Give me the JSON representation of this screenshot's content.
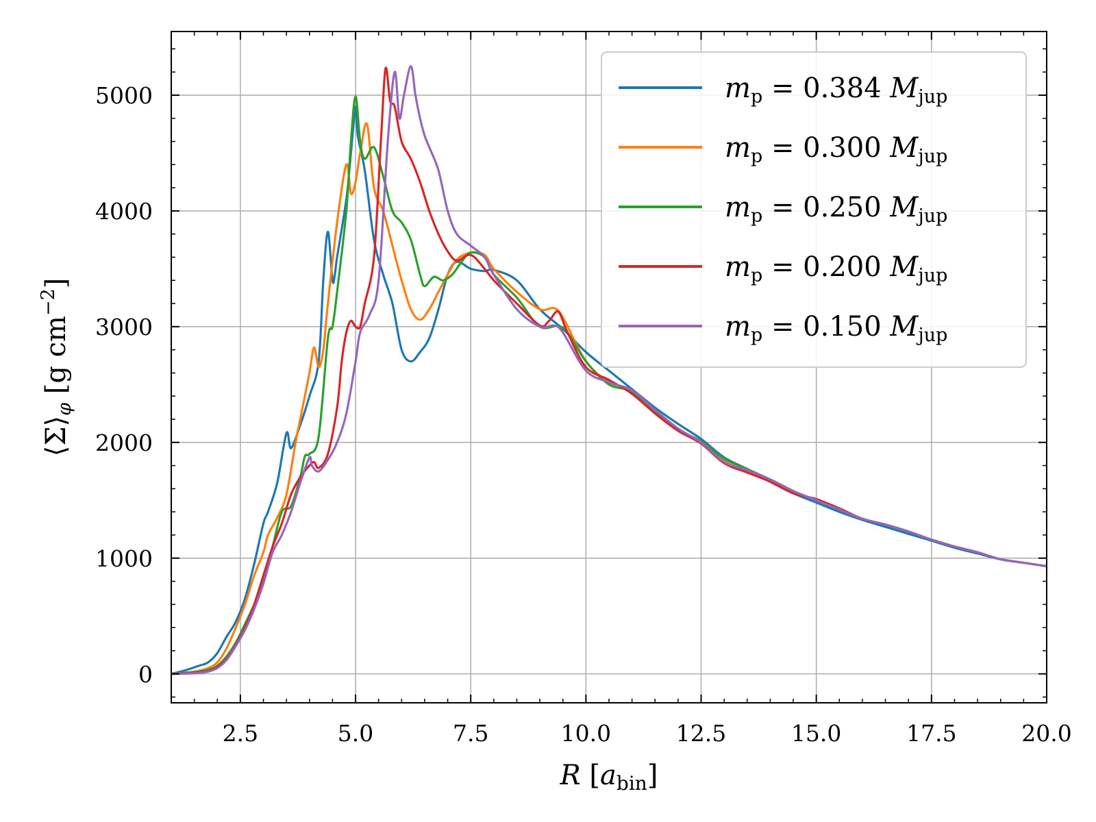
{
  "chart_data": {
    "type": "line",
    "title": "",
    "xlabel": "R [a_bin]",
    "ylabel": "⟨Σ⟩_φ [g cm^-2]",
    "xlim": [
      1.0,
      20.0
    ],
    "ylim": [
      -250,
      5550
    ],
    "xticks": [
      2.5,
      5.0,
      7.5,
      10.0,
      12.5,
      15.0,
      17.5,
      20.0
    ],
    "xtick_labels": [
      "2.5",
      "5.0",
      "7.5",
      "10.0",
      "12.5",
      "15.0",
      "17.5",
      "20.0"
    ],
    "yticks": [
      0,
      1000,
      2000,
      3000,
      4000,
      5000
    ],
    "ytick_labels": [
      "0",
      "1000",
      "2000",
      "3000",
      "4000",
      "5000"
    ],
    "grid": true,
    "legend_position": "top-right",
    "series": [
      {
        "name": "m_p = 0.384 M_jup",
        "color": "#1f77b4",
        "x": [
          1.0,
          1.3,
          1.6,
          1.8,
          2.0,
          2.2,
          2.4,
          2.6,
          2.8,
          3.0,
          3.1,
          3.3,
          3.5,
          3.6,
          3.8,
          4.0,
          4.2,
          4.3,
          4.4,
          4.5,
          4.55,
          4.6,
          4.8,
          4.9,
          5.0,
          5.05,
          5.2,
          5.4,
          5.6,
          5.8,
          6.0,
          6.2,
          6.4,
          6.6,
          6.8,
          7.0,
          7.2,
          7.5,
          7.8,
          8.0,
          8.5,
          9.0,
          9.5,
          10.0,
          10.5,
          11.0,
          11.5,
          12.0,
          12.5,
          13.0,
          13.5,
          14.0,
          14.5,
          15.0,
          15.5,
          16.0,
          16.5,
          17.0,
          17.5,
          18.0,
          18.5,
          19.0,
          19.5,
          20.0
        ],
        "y": [
          0,
          30,
          70,
          100,
          180,
          320,
          450,
          650,
          950,
          1300,
          1400,
          1650,
          2080,
          1950,
          2150,
          2400,
          2700,
          3400,
          3820,
          3400,
          3450,
          3600,
          4100,
          4500,
          4900,
          4650,
          4350,
          3750,
          3450,
          3200,
          2800,
          2700,
          2780,
          2900,
          3150,
          3450,
          3560,
          3500,
          3480,
          3490,
          3400,
          3150,
          2980,
          2780,
          2620,
          2460,
          2300,
          2160,
          2030,
          1870,
          1770,
          1660,
          1560,
          1480,
          1400,
          1330,
          1270,
          1210,
          1150,
          1090,
          1040,
          990,
          960,
          930
        ]
      },
      {
        "name": "m_p = 0.300 M_jup",
        "color": "#ff7f0e",
        "x": [
          1.0,
          1.5,
          1.8,
          2.0,
          2.2,
          2.4,
          2.6,
          2.8,
          3.0,
          3.1,
          3.3,
          3.5,
          3.7,
          3.9,
          4.0,
          4.1,
          4.2,
          4.3,
          4.4,
          4.6,
          4.8,
          4.9,
          5.0,
          5.1,
          5.25,
          5.4,
          5.6,
          5.8,
          6.0,
          6.2,
          6.4,
          6.6,
          6.8,
          7.0,
          7.2,
          7.5,
          7.8,
          8.0,
          8.5,
          9.0,
          9.3,
          9.5,
          10.0,
          10.5,
          11.0,
          11.5,
          12.0,
          12.5,
          13.0,
          13.5,
          14.0,
          14.5,
          15.0,
          15.5,
          16.0,
          16.5,
          17.0,
          17.5,
          18.0,
          18.5,
          19.0,
          19.5,
          20.0
        ],
        "y": [
          0,
          20,
          50,
          100,
          220,
          400,
          600,
          850,
          1050,
          1200,
          1350,
          1550,
          2000,
          2400,
          2600,
          2820,
          2650,
          2800,
          3200,
          3900,
          4400,
          4150,
          4250,
          4500,
          4750,
          4200,
          4000,
          3700,
          3400,
          3150,
          3060,
          3150,
          3300,
          3450,
          3580,
          3640,
          3620,
          3500,
          3300,
          3150,
          3160,
          3080,
          2700,
          2520,
          2440,
          2250,
          2110,
          2000,
          1840,
          1750,
          1680,
          1580,
          1500,
          1420,
          1340,
          1290,
          1230,
          1160,
          1100,
          1050,
          990,
          960,
          930
        ]
      },
      {
        "name": "m_p = 0.250 M_jup",
        "color": "#2ca02c",
        "x": [
          1.0,
          1.5,
          1.8,
          2.0,
          2.2,
          2.4,
          2.6,
          2.8,
          3.0,
          3.2,
          3.4,
          3.6,
          3.8,
          3.9,
          4.0,
          4.2,
          4.4,
          4.5,
          4.6,
          4.8,
          4.9,
          5.0,
          5.1,
          5.2,
          5.4,
          5.6,
          5.8,
          6.0,
          6.2,
          6.4,
          6.5,
          6.7,
          6.9,
          7.1,
          7.3,
          7.5,
          7.8,
          8.0,
          8.5,
          9.0,
          9.5,
          10.0,
          10.5,
          11.0,
          11.5,
          12.0,
          12.5,
          13.0,
          13.5,
          14.0,
          14.5,
          15.0,
          15.5,
          16.0,
          16.5,
          17.0,
          17.5,
          18.0,
          18.5,
          19.0,
          19.5,
          20.0
        ],
        "y": [
          0,
          15,
          35,
          70,
          150,
          270,
          430,
          600,
          800,
          1100,
          1400,
          1450,
          1700,
          1880,
          1900,
          2050,
          2900,
          3000,
          3300,
          4000,
          4600,
          4990,
          4600,
          4450,
          4550,
          4300,
          4000,
          3900,
          3750,
          3450,
          3350,
          3430,
          3400,
          3450,
          3560,
          3640,
          3600,
          3450,
          3250,
          3000,
          2990,
          2700,
          2500,
          2440,
          2260,
          2110,
          2010,
          1860,
          1770,
          1680,
          1580,
          1500,
          1420,
          1340,
          1290,
          1230,
          1160,
          1100,
          1050,
          990,
          960,
          930
        ]
      },
      {
        "name": "m_p = 0.200 M_jup",
        "color": "#d62728",
        "x": [
          1.0,
          1.5,
          1.8,
          2.0,
          2.2,
          2.4,
          2.6,
          2.8,
          3.0,
          3.2,
          3.4,
          3.6,
          3.8,
          4.0,
          4.1,
          4.2,
          4.4,
          4.6,
          4.7,
          4.8,
          4.9,
          5.0,
          5.1,
          5.2,
          5.4,
          5.55,
          5.65,
          5.75,
          5.85,
          6.0,
          6.2,
          6.4,
          6.6,
          6.8,
          7.0,
          7.2,
          7.5,
          7.8,
          8.0,
          8.5,
          9.0,
          9.2,
          9.4,
          9.6,
          10.0,
          10.5,
          11.0,
          11.5,
          12.0,
          12.5,
          13.0,
          13.5,
          14.0,
          14.5,
          15.0,
          15.5,
          16.0,
          16.5,
          17.0,
          17.5,
          18.0,
          18.5,
          19.0,
          19.5,
          20.0
        ],
        "y": [
          0,
          10,
          25,
          60,
          130,
          250,
          400,
          600,
          850,
          1100,
          1300,
          1550,
          1700,
          1800,
          1830,
          1780,
          1900,
          2300,
          2700,
          2950,
          3050,
          3000,
          3000,
          3200,
          3600,
          4600,
          5230,
          4950,
          4900,
          4600,
          4450,
          4250,
          4000,
          3800,
          3650,
          3570,
          3620,
          3500,
          3400,
          3200,
          3010,
          3050,
          3130,
          2950,
          2650,
          2540,
          2420,
          2250,
          2100,
          1990,
          1820,
          1740,
          1660,
          1560,
          1510,
          1430,
          1340,
          1290,
          1230,
          1160,
          1100,
          1050,
          990,
          960,
          930
        ]
      },
      {
        "name": "m_p = 0.150 M_jup",
        "color": "#9467bd",
        "x": [
          1.0,
          1.5,
          1.8,
          2.0,
          2.2,
          2.4,
          2.6,
          2.8,
          3.0,
          3.2,
          3.4,
          3.6,
          3.8,
          4.0,
          4.05,
          4.2,
          4.4,
          4.6,
          4.8,
          5.0,
          5.1,
          5.3,
          5.5,
          5.7,
          5.85,
          5.95,
          6.05,
          6.2,
          6.3,
          6.4,
          6.5,
          6.6,
          6.8,
          7.0,
          7.2,
          7.5,
          7.8,
          8.0,
          8.5,
          9.0,
          9.3,
          9.5,
          10.0,
          10.5,
          11.0,
          11.5,
          12.0,
          12.5,
          13.0,
          13.5,
          14.0,
          14.5,
          15.0,
          15.5,
          16.0,
          16.5,
          17.0,
          17.5,
          18.0,
          18.5,
          19.0,
          19.5,
          20.0
        ],
        "y": [
          0,
          5,
          20,
          50,
          120,
          240,
          380,
          560,
          780,
          1050,
          1200,
          1400,
          1650,
          1870,
          1800,
          1750,
          1850,
          2000,
          2250,
          2700,
          2950,
          3100,
          3400,
          4600,
          5200,
          4800,
          5000,
          5250,
          5000,
          4800,
          4650,
          4550,
          4350,
          4000,
          3800,
          3700,
          3600,
          3450,
          3150,
          3000,
          3010,
          2950,
          2620,
          2520,
          2450,
          2280,
          2120,
          2000,
          1830,
          1760,
          1680,
          1580,
          1500,
          1420,
          1340,
          1290,
          1230,
          1160,
          1100,
          1050,
          990,
          960,
          930
        ]
      }
    ]
  }
}
